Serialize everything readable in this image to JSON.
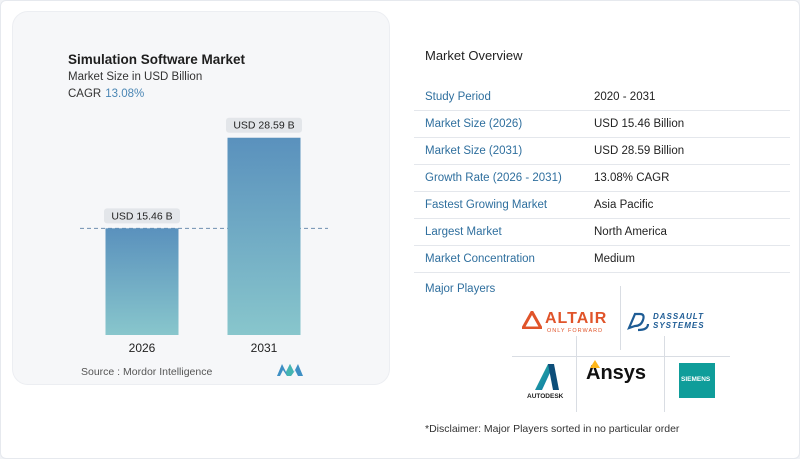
{
  "chart_data": {
    "type": "bar",
    "title": "Simulation Software Market",
    "subtitle": "Market Size in USD Billion",
    "cagr_label": "CAGR",
    "cagr_value": "13.08%",
    "categories": [
      "2026",
      "2031"
    ],
    "values": [
      15.46,
      28.59
    ],
    "data_labels": [
      "USD 15.46 B",
      "USD 28.59 B"
    ],
    "ylim": [
      0,
      30
    ],
    "grid": false,
    "source": "Source :  Mordor Intelligence",
    "colors": {
      "bar_top": "#5a91bd",
      "bar_bottom": "#88c6cc",
      "reference_line": "#6f8fb0"
    }
  },
  "overview": {
    "title": "Market Overview",
    "rows": [
      {
        "key": "Study Period",
        "value": "2020 - 2031"
      },
      {
        "key": "Market Size (2026)",
        "value": "USD 15.46 Billion"
      },
      {
        "key": "Market Size (2031)",
        "value": "USD 28.59 Billion"
      },
      {
        "key": "Growth Rate (2026 - 2031)",
        "value": "13.08% CAGR"
      },
      {
        "key": "Fastest Growing Market",
        "value": "Asia Pacific"
      },
      {
        "key": "Largest Market",
        "value": "North America"
      },
      {
        "key": "Market Concentration",
        "value": "Medium"
      }
    ],
    "players_title": "Major Players",
    "players": [
      "ALTAIR",
      "DASSAULT SYSTEMES",
      "AUTODESK",
      "Ansys",
      "SIEMENS"
    ],
    "altair_tagline": "ONLY FORWARD",
    "dassault_line1": "DASSAULT",
    "dassault_line2": "SYSTEMES",
    "disclaimer": "*Disclaimer: Major Players sorted in no particular order"
  }
}
